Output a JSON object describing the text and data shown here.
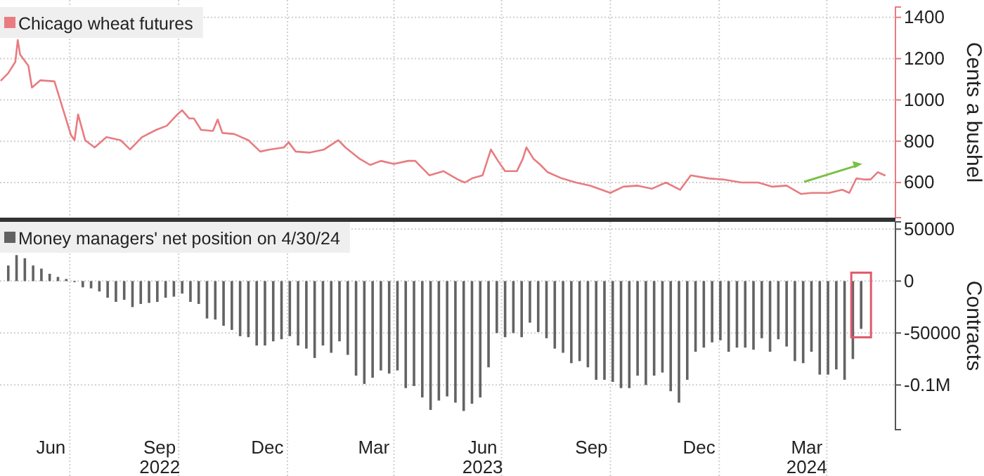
{
  "chart_data": [
    {
      "type": "line",
      "xlabel": null,
      "ylabel": "Cents a bushel",
      "legend": "top left",
      "grid": true,
      "tick_labels": "y",
      "xlim": [
        "2022-05-03",
        "2024-05-29"
      ],
      "ylim": [
        430,
        1450
      ],
      "yticks": [
        600,
        800,
        1000,
        1200,
        1400
      ],
      "xticks": [
        {
          "value": "2022-07-01",
          "label": null
        },
        {
          "value": "2022-10-01",
          "label": null
        },
        {
          "value": "2023-01-01",
          "label": null
        },
        {
          "value": "2023-04-01",
          "label": null
        },
        {
          "value": "2023-07-01",
          "label": null
        },
        {
          "value": "2023-10-01",
          "label": null
        },
        {
          "value": "2024-01-01",
          "label": null
        },
        {
          "value": "2024-04-01",
          "label": null
        }
      ],
      "series": [
        {
          "name": "Chicago wheat futures",
          "color": "#e87c80",
          "x": [
            "2022-05-04",
            "2022-05-10",
            "2022-05-16",
            "2022-05-18",
            "2022-05-20",
            "2022-05-27",
            "2022-05-30",
            "2022-06-06",
            "2022-06-18",
            "2022-06-21",
            "2022-06-25",
            "2022-07-02",
            "2022-07-05",
            "2022-07-08",
            "2022-07-14",
            "2022-07-22",
            "2022-08-01",
            "2022-08-13",
            "2022-08-21",
            "2022-08-31",
            "2022-09-12",
            "2022-09-21",
            "2022-09-30",
            "2022-10-04",
            "2022-10-10",
            "2022-10-14",
            "2022-10-20",
            "2022-10-30",
            "2022-11-03",
            "2022-11-07",
            "2022-11-17",
            "2022-11-29",
            "2022-12-09",
            "2022-12-17",
            "2022-12-29",
            "2023-01-02",
            "2023-01-08",
            "2023-01-20",
            "2023-02-01",
            "2023-02-13",
            "2023-02-19",
            "2023-03-03",
            "2023-03-12",
            "2023-03-21",
            "2023-04-01",
            "2023-04-13",
            "2023-04-19",
            "2023-05-01",
            "2023-05-13",
            "2023-05-25",
            "2023-05-31",
            "2023-06-06",
            "2023-06-15",
            "2023-06-22",
            "2023-06-28",
            "2023-07-04",
            "2023-07-14",
            "2023-07-19",
            "2023-07-22",
            "2023-07-28",
            "2023-08-03",
            "2023-08-09",
            "2023-08-21",
            "2023-09-02",
            "2023-09-14",
            "2023-10-01",
            "2023-10-12",
            "2023-10-24",
            "2023-11-05",
            "2023-11-17",
            "2023-11-29",
            "2023-12-08",
            "2023-12-23",
            "2024-01-04",
            "2024-01-20",
            "2024-02-03",
            "2024-02-15",
            "2024-02-27",
            "2024-03-10",
            "2024-03-19",
            "2024-04-03",
            "2024-04-14",
            "2024-04-20",
            "2024-04-26",
            "2024-05-02",
            "2024-05-08",
            "2024-05-14",
            "2024-05-20"
          ],
          "values": [
            1095,
            1130,
            1185,
            1290,
            1220,
            1165,
            1060,
            1095,
            1090,
            1035,
            960,
            830,
            805,
            930,
            805,
            770,
            820,
            805,
            760,
            820,
            855,
            875,
            930,
            950,
            910,
            910,
            855,
            850,
            905,
            840,
            835,
            805,
            750,
            760,
            770,
            795,
            750,
            745,
            760,
            805,
            770,
            715,
            685,
            705,
            690,
            705,
            705,
            635,
            655,
            615,
            600,
            620,
            635,
            760,
            705,
            655,
            655,
            715,
            770,
            715,
            685,
            650,
            620,
            600,
            585,
            550,
            580,
            585,
            570,
            600,
            565,
            635,
            620,
            615,
            600,
            600,
            580,
            585,
            545,
            550,
            550,
            565,
            550,
            620,
            615,
            615,
            650,
            635
          ]
        }
      ]
    },
    {
      "type": "bar",
      "ylabel": "Contracts",
      "legend": "top left",
      "grid": true,
      "xlim": [
        "2022-05-03",
        "2024-05-29"
      ],
      "ylim": [
        -143000,
        57000
      ],
      "yticks": [
        50000,
        0,
        -50000,
        {
          "value": -100000,
          "label": "-0.1M"
        }
      ],
      "xticks": [
        {
          "value": "2022-06-15",
          "label": "Jun"
        },
        {
          "value": "2022-07-01",
          "label": null
        },
        {
          "value": "2022-09-15",
          "label": "Sep\n2022"
        },
        {
          "value": "2022-10-01",
          "label": null
        },
        {
          "value": "2022-12-15",
          "label": "Dec"
        },
        {
          "value": "2023-01-01",
          "label": null
        },
        {
          "value": "2023-03-15",
          "label": "Mar"
        },
        {
          "value": "2023-04-01",
          "label": null
        },
        {
          "value": "2023-06-15",
          "label": "Jun\n2023"
        },
        {
          "value": "2023-07-01",
          "label": null
        },
        {
          "value": "2023-09-15",
          "label": "Sep"
        },
        {
          "value": "2023-10-01",
          "label": null
        },
        {
          "value": "2023-12-15",
          "label": "Dec"
        },
        {
          "value": "2024-01-01",
          "label": null
        },
        {
          "value": "2024-03-15",
          "label": "Mar\n2024"
        },
        {
          "value": "2024-04-01",
          "label": null
        }
      ],
      "series": [
        {
          "name": "Money managers' net position on 4/30/24",
          "color": "#636363",
          "x": [
            "2022-05-10",
            "2022-05-17",
            "2022-05-24",
            "2022-05-31",
            "2022-06-07",
            "2022-06-14",
            "2022-06-21",
            "2022-06-28",
            "2022-07-05",
            "2022-07-12",
            "2022-07-19",
            "2022-07-26",
            "2022-08-02",
            "2022-08-09",
            "2022-08-16",
            "2022-08-23",
            "2022-08-30",
            "2022-09-06",
            "2022-09-13",
            "2022-09-20",
            "2022-09-27",
            "2022-10-04",
            "2022-10-11",
            "2022-10-18",
            "2022-10-25",
            "2022-11-01",
            "2022-11-08",
            "2022-11-15",
            "2022-11-22",
            "2022-11-29",
            "2022-12-06",
            "2022-12-13",
            "2022-12-20",
            "2022-12-27",
            "2023-01-03",
            "2023-01-10",
            "2023-01-17",
            "2023-01-24",
            "2023-01-31",
            "2023-02-07",
            "2023-02-14",
            "2023-02-21",
            "2023-02-28",
            "2023-03-07",
            "2023-03-14",
            "2023-03-21",
            "2023-03-28",
            "2023-04-04",
            "2023-04-11",
            "2023-04-18",
            "2023-04-25",
            "2023-05-02",
            "2023-05-09",
            "2023-05-16",
            "2023-05-23",
            "2023-05-30",
            "2023-06-06",
            "2023-06-13",
            "2023-06-20",
            "2023-06-27",
            "2023-07-04",
            "2023-07-11",
            "2023-07-18",
            "2023-07-25",
            "2023-08-01",
            "2023-08-08",
            "2023-08-15",
            "2023-08-22",
            "2023-08-29",
            "2023-09-05",
            "2023-09-12",
            "2023-09-19",
            "2023-09-26",
            "2023-10-03",
            "2023-10-10",
            "2023-10-17",
            "2023-10-24",
            "2023-10-31",
            "2023-11-07",
            "2023-11-14",
            "2023-11-21",
            "2023-11-28",
            "2023-12-05",
            "2023-12-12",
            "2023-12-19",
            "2023-12-26",
            "2024-01-02",
            "2024-01-09",
            "2024-01-16",
            "2024-01-23",
            "2024-01-30",
            "2024-02-06",
            "2024-02-13",
            "2024-02-20",
            "2024-02-27",
            "2024-03-05",
            "2024-03-12",
            "2024-03-19",
            "2024-03-26",
            "2024-04-02",
            "2024-04-09",
            "2024-04-16",
            "2024-04-23",
            "2024-04-30"
          ],
          "values": [
            15000,
            25000,
            22000,
            15000,
            12000,
            7000,
            4000,
            2000,
            -1000,
            -6000,
            -7000,
            -10000,
            -16000,
            -20000,
            -18000,
            -25000,
            -22000,
            -21000,
            -20000,
            -16000,
            -15000,
            -12000,
            -20000,
            -22000,
            -36000,
            -37000,
            -43000,
            -47000,
            -53000,
            -54000,
            -62000,
            -62000,
            -58000,
            -56000,
            -53000,
            -62000,
            -65000,
            -74000,
            -62000,
            -69000,
            -58000,
            -71000,
            -91000,
            -99000,
            -93000,
            -86000,
            -89000,
            -86000,
            -103000,
            -101000,
            -112000,
            -124000,
            -115000,
            -111000,
            -117000,
            -125000,
            -118000,
            -112000,
            -83000,
            -50000,
            -54000,
            -50000,
            -54000,
            -40000,
            -49000,
            -55000,
            -65000,
            -69000,
            -79000,
            -77000,
            -83000,
            -95000,
            -95000,
            -97000,
            -103000,
            -103000,
            -91000,
            -100000,
            -91000,
            -88000,
            -106000,
            -117000,
            -95000,
            -68000,
            -64000,
            -59000,
            -57000,
            -68000,
            -64000,
            -64000,
            -66000,
            -55000,
            -68000,
            -56000,
            -63000,
            -77000,
            -79000,
            -68000,
            -90000,
            -90000,
            -85000,
            -95000,
            -75000,
            -46000
          ]
        }
      ]
    }
  ]
}
